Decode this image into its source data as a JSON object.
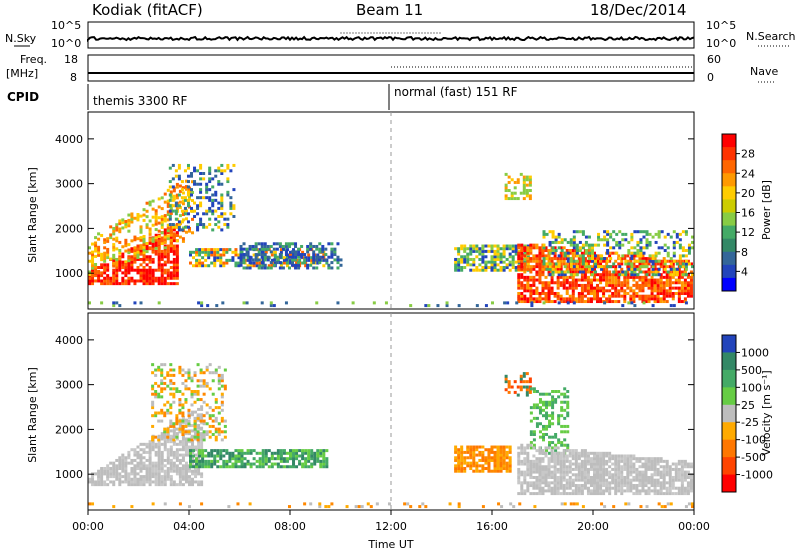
{
  "header": {
    "station": "Kodiak (fitACF)",
    "beam": "Beam 11",
    "date": "18/Dec/2014"
  },
  "top_panels": {
    "noise": {
      "left_label": "N.Sky",
      "right_label": "N.Search",
      "left_ticks": [
        "10^5",
        "10^0"
      ],
      "right_ticks": [
        "10^5",
        "10^0"
      ]
    },
    "freq": {
      "left_label_line1": "Freq.",
      "left_label_line2": "[MHz]",
      "right_label": "Nave",
      "left_ticks": [
        "18",
        "8"
      ],
      "right_ticks": [
        "60",
        "0"
      ]
    },
    "cpid": {
      "label": "CPID",
      "segment1": "themis 3300 RF",
      "segment2": "normal (fast) 151 RF"
    }
  },
  "x_axis": {
    "label": "Time UT",
    "ticks": [
      "00:00",
      "04:00",
      "08:00",
      "12:00",
      "16:00",
      "20:00",
      "00:00"
    ]
  },
  "chart_data": [
    {
      "type": "heatmap",
      "quantity": "Power",
      "ylabel": "Slant Range [km]",
      "ylim": [
        200,
        4600
      ],
      "yticks": [
        1000,
        2000,
        3000,
        4000
      ],
      "xlim_hours": [
        0,
        24
      ],
      "colorbar": {
        "label": "Power [dB]",
        "ticks": [
          "28",
          "24",
          "20",
          "16",
          "12",
          "8",
          "4"
        ],
        "colors": [
          "#ff0000",
          "#ff3300",
          "#ff6600",
          "#ff9900",
          "#ffcc00",
          "#cccc00",
          "#88cc44",
          "#44aa66",
          "#338866",
          "#336699",
          "#2244bb",
          "#0000ff"
        ]
      }
    },
    {
      "type": "heatmap",
      "quantity": "Velocity",
      "ylabel": "Slant Range [km]",
      "ylim": [
        200,
        4600
      ],
      "yticks": [
        1000,
        2000,
        3000,
        4000
      ],
      "xlim_hours": [
        0,
        24
      ],
      "colorbar": {
        "label": "Velocity [m s⁻¹]",
        "ticks": [
          "1000",
          "500",
          "100",
          "25",
          "-25",
          "-100",
          "-500",
          "-1000"
        ],
        "colors": [
          "#2244bb",
          "#338866",
          "#44aa66",
          "#66cc44",
          "#bdbdbd",
          "#ffaa00",
          "#ff7700",
          "#ff4400",
          "#ff0000"
        ]
      }
    }
  ]
}
